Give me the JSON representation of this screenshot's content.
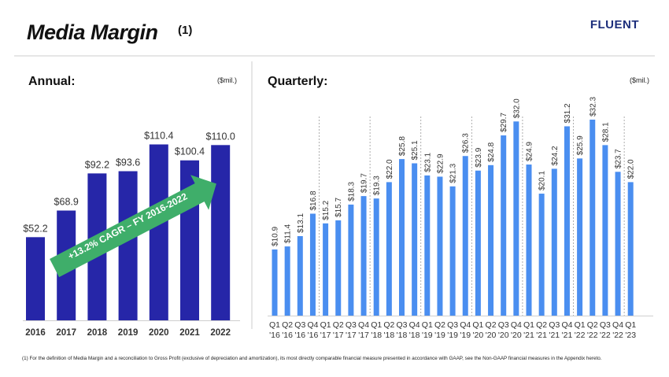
{
  "header": {
    "title": "Media Margin",
    "title_note": "(1)",
    "logo": "FLUENT"
  },
  "annual": {
    "section_title": "Annual:",
    "unit": "($mil.)",
    "callout": "+13.2% CAGR – FY 2016-2022"
  },
  "quarterly": {
    "section_title": "Quarterly:",
    "unit": "($mil.)"
  },
  "footnote": "(1) For the definition of Media Margin and a reconciliation to Gross Profit (exclusive of depreciation and amortization), its most directly comparable financial measure presented in accordance with GAAP, see the Non-GAAP financial measures in the Appendix hereto.",
  "colors": {
    "annual_bar": "#2626a8",
    "quarterly_bar": "#4a8ef0",
    "arrow": "#3fae6a"
  },
  "chart_data": [
    {
      "type": "bar",
      "categories": [
        "2016",
        "2017",
        "2018",
        "2019",
        "2020",
        "2021",
        "2022"
      ],
      "values": [
        52.2,
        68.9,
        92.2,
        93.6,
        110.4,
        100.4,
        110.0
      ],
      "labels": [
        "$52.2",
        "$68.9",
        "$92.2",
        "$93.6",
        "$110.4",
        "$100.4",
        "$110.0"
      ],
      "ylim": [
        0,
        115
      ],
      "grid": false,
      "legend": "none"
    },
    {
      "type": "bar",
      "categories": [
        [
          "Q1",
          "'16"
        ],
        [
          "Q2",
          "'16"
        ],
        [
          "Q3",
          "'16"
        ],
        [
          "Q4",
          "'16"
        ],
        [
          "Q1",
          "'17"
        ],
        [
          "Q2",
          "'17"
        ],
        [
          "Q3",
          "'17"
        ],
        [
          "Q4",
          "'17"
        ],
        [
          "Q1",
          "'18"
        ],
        [
          "Q2",
          "'18"
        ],
        [
          "Q3",
          "'18"
        ],
        [
          "Q4",
          "'18"
        ],
        [
          "Q1",
          "'19"
        ],
        [
          "Q2",
          "'19"
        ],
        [
          "Q3",
          "'19"
        ],
        [
          "Q4",
          "'19"
        ],
        [
          "Q1",
          "'20"
        ],
        [
          "Q2",
          "'20"
        ],
        [
          "Q3",
          "'20"
        ],
        [
          "Q4",
          "'20"
        ],
        [
          "Q1",
          "'21"
        ],
        [
          "Q2",
          "'21"
        ],
        [
          "Q3",
          "'21"
        ],
        [
          "Q4",
          "'21"
        ],
        [
          "Q1",
          "'22"
        ],
        [
          "Q2",
          "'22"
        ],
        [
          "Q3",
          "'22"
        ],
        [
          "Q4",
          "'22"
        ],
        [
          "Q1",
          "'23"
        ]
      ],
      "values": [
        10.9,
        11.4,
        13.1,
        16.8,
        15.2,
        15.7,
        18.3,
        19.7,
        19.3,
        22.0,
        25.8,
        25.1,
        23.1,
        22.9,
        21.3,
        26.3,
        23.9,
        24.8,
        29.7,
        32.0,
        24.9,
        20.1,
        24.2,
        31.2,
        25.9,
        32.3,
        28.1,
        23.7,
        22.0
      ],
      "labels": [
        "$10.9",
        "$11.4",
        "$13.1",
        "$16.8",
        "$15.2",
        "$15.7",
        "$18.3",
        "$19.7",
        "$19.3",
        "$22.0",
        "$25.8",
        "$25.1",
        "$23.1",
        "$22.9",
        "$21.3",
        "$26.3",
        "$23.9",
        "$24.8",
        "$29.7",
        "$32.0",
        "$24.9",
        "$20.1",
        "$24.2",
        "$31.2",
        "$25.9",
        "$32.3",
        "$28.1",
        "$23.7",
        "$22.0"
      ],
      "ylim": [
        0,
        36
      ],
      "year_dividers_after_quarter": [
        "Q4 '16",
        "Q4 '17",
        "Q4 '18",
        "Q4 '19",
        "Q4 '20",
        "Q4 '21",
        "Q4 '22"
      ],
      "grid": false,
      "legend": "none"
    }
  ]
}
